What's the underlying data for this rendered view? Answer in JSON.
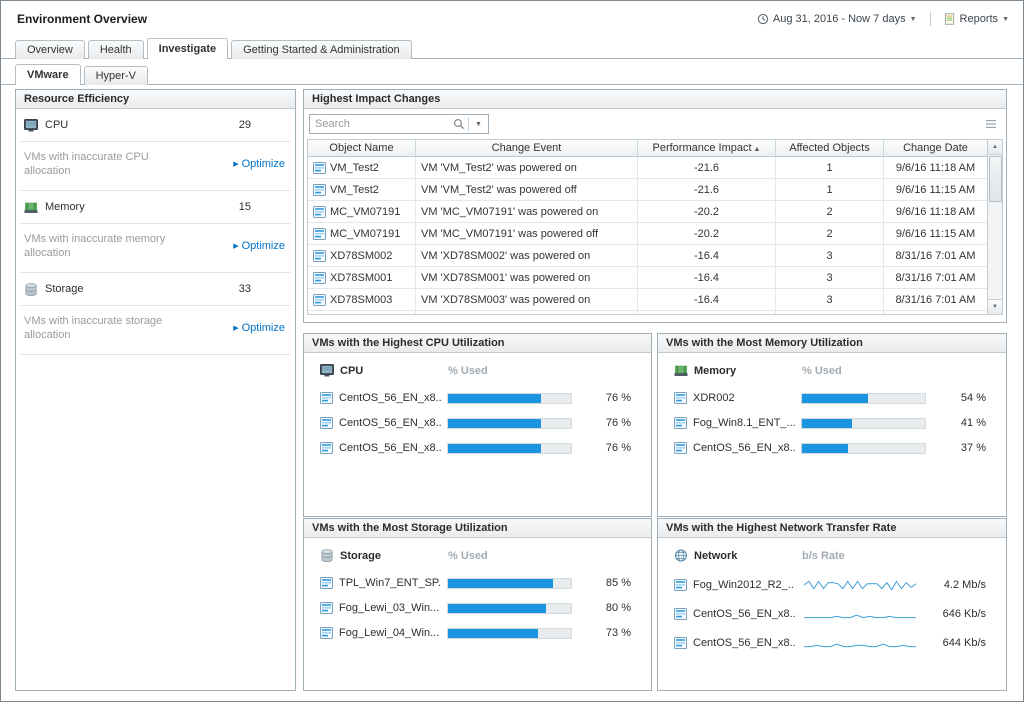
{
  "colors": {
    "accent_blue": "#1b95e0",
    "link_blue": "#0072c6",
    "spark_stroke": "#3f9fd8",
    "muted_text": "#a3abb2",
    "panel_border": "#a0aeb8"
  },
  "icons": {
    "caret_down": "▼",
    "sort_asc": "▲",
    "optimize_arrow": "▶",
    "scroll_up": "▲",
    "scroll_down": "▼"
  },
  "header": {
    "title": "Environment Overview",
    "time_range": "Aug 31, 2016 - Now 7 days",
    "reports_label": "Reports"
  },
  "tabs": {
    "main": [
      "Overview",
      "Health",
      "Investigate",
      "Getting Started & Administration"
    ],
    "active_main": "Investigate",
    "sub": [
      "VMware",
      "Hyper-V"
    ],
    "active_sub": "VMware"
  },
  "resource_efficiency": {
    "title": "Resource Efficiency",
    "items": [
      {
        "label": "CPU",
        "value": "29",
        "note": "VMs with inaccurate CPU allocation",
        "action": "Optimize"
      },
      {
        "label": "Memory",
        "value": "15",
        "note": "VMs with inaccurate memory allocation",
        "action": "Optimize"
      },
      {
        "label": "Storage",
        "value": "33",
        "note": "VMs with inaccurate storage allocation",
        "action": "Optimize"
      }
    ]
  },
  "impact": {
    "title": "Highest Impact Changes",
    "search_placeholder": "Search",
    "columns": [
      "Object Name",
      "Change Event",
      "Performance Impact",
      "Affected Objects",
      "Change Date"
    ],
    "sort_column": "Performance Impact",
    "rows": [
      [
        "VM_Test2",
        "VM 'VM_Test2' was powered on",
        "-21.6",
        "1",
        "9/6/16 11:18 AM"
      ],
      [
        "VM_Test2",
        "VM 'VM_Test2' was powered off",
        "-21.6",
        "1",
        "9/6/16 11:15 AM"
      ],
      [
        "MC_VM07191",
        "VM 'MC_VM07191' was powered on",
        "-20.2",
        "2",
        "9/6/16 11:18 AM"
      ],
      [
        "MC_VM07191",
        "VM 'MC_VM07191' was powered off",
        "-20.2",
        "2",
        "9/6/16 11:15 AM"
      ],
      [
        "XD78SM002",
        "VM 'XD78SM002' was powered on",
        "-16.4",
        "3",
        "8/31/16 7:01 AM"
      ],
      [
        "XD78SM001",
        "VM 'XD78SM001' was powered on",
        "-16.4",
        "3",
        "8/31/16 7:01 AM"
      ],
      [
        "XD78SM003",
        "VM 'XD78SM003' was powered on",
        "-16.4",
        "3",
        "8/31/16 7:01 AM"
      ]
    ]
  },
  "cpu_panel": {
    "title": "VMs with the Highest CPU Utilization",
    "metric": "CPU",
    "value_header": "% Used",
    "rows": [
      {
        "name": "CentOS_56_EN_x8...",
        "percent": 76,
        "value": "76 %"
      },
      {
        "name": "CentOS_56_EN_x8...",
        "percent": 76,
        "value": "76 %"
      },
      {
        "name": "CentOS_56_EN_x8...",
        "percent": 76,
        "value": "76 %"
      }
    ]
  },
  "memory_panel": {
    "title": "VMs with the Most Memory Utilization",
    "metric": "Memory",
    "value_header": "% Used",
    "rows": [
      {
        "name": "XDR002",
        "percent": 54,
        "value": "54 %"
      },
      {
        "name": "Fog_Win8.1_ENT_...",
        "percent": 41,
        "value": "41 %"
      },
      {
        "name": "CentOS_56_EN_x8...",
        "percent": 37,
        "value": "37 %"
      }
    ]
  },
  "storage_panel": {
    "title": "VMs with the Most Storage Utilization",
    "metric": "Storage",
    "value_header": "% Used",
    "rows": [
      {
        "name": "TPL_Win7_ENT_SP...",
        "percent": 85,
        "value": "85 %"
      },
      {
        "name": "Fog_Lewi_03_Win...",
        "percent": 80,
        "value": "80 %"
      },
      {
        "name": "Fog_Lewi_04_Win...",
        "percent": 73,
        "value": "73 %"
      }
    ]
  },
  "network_panel": {
    "title": "VMs with the Highest Network Transfer Rate",
    "metric": "Network",
    "value_header": "b/s Rate",
    "rows": [
      {
        "name": "Fog_Win2012_R2_...",
        "value": "4.2 Mb/s",
        "spark": [
          5,
          8,
          2,
          8,
          2,
          7,
          7,
          6,
          2,
          8,
          2,
          8,
          2,
          6,
          6,
          6,
          2,
          7,
          1,
          8,
          2,
          7,
          3,
          6
        ]
      },
      {
        "name": "CentOS_56_EN_x8...",
        "value": "646 Kb/s",
        "spark": [
          2,
          2,
          2,
          2,
          2,
          3,
          2,
          2,
          4,
          2,
          3,
          2,
          2,
          3,
          2,
          2,
          2,
          2
        ]
      },
      {
        "name": "CentOS_56_EN_x8...",
        "value": "644 Kb/s",
        "spark": [
          2,
          2,
          3,
          2,
          2,
          4,
          2,
          2,
          3,
          3,
          2,
          2,
          4,
          2,
          2,
          3,
          2,
          2
        ]
      }
    ]
  }
}
